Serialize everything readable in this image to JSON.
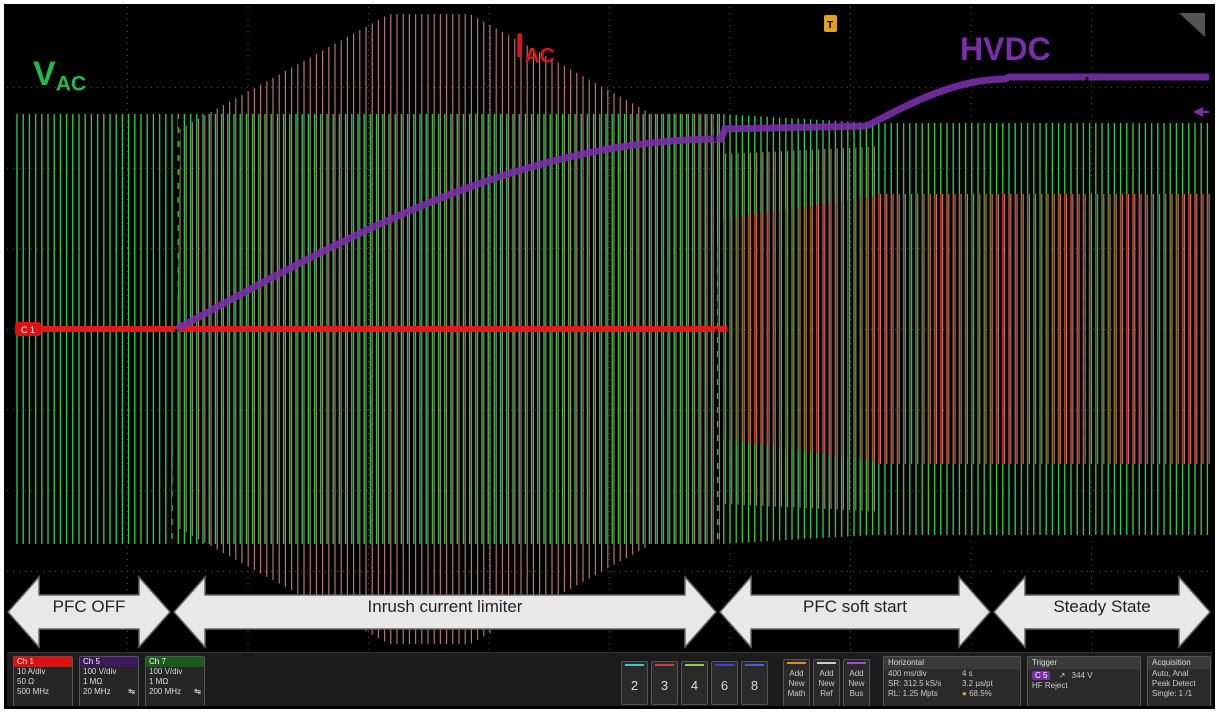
{
  "labels": {
    "vac": {
      "main": "V",
      "sub": "AC"
    },
    "iac": {
      "main": "I",
      "sub": "AC"
    },
    "hvdc": "HVDC"
  },
  "cursor_label": "C 1",
  "trigger_marker": "T",
  "phases": [
    {
      "label": "PFC OFF"
    },
    {
      "label": "Inrush  current limiter"
    },
    {
      "label": "PFC soft start"
    },
    {
      "label": "Steady State"
    }
  ],
  "channels": [
    {
      "name": "Ch 1",
      "color": "#e01010",
      "lines": [
        "10 A/div",
        "50 Ω",
        "500 MHz"
      ]
    },
    {
      "name": "Ch 5",
      "color": "#3a1a5a",
      "lines": [
        "100 V/div",
        "1 MΩ",
        "20 MHz"
      ]
    },
    {
      "name": "Ch 7",
      "color": "#1a5a1a",
      "lines": [
        "100 V/div",
        "1 MΩ",
        "200 MHz"
      ]
    }
  ],
  "number_buttons": [
    {
      "label": "2",
      "color": "#3fc8c8"
    },
    {
      "label": "3",
      "color": "#d04040"
    },
    {
      "label": "4",
      "color": "#9acc40"
    },
    {
      "label": "6",
      "color": "#4040d0"
    },
    {
      "label": "8",
      "color": "#4060e0"
    }
  ],
  "add_buttons": [
    {
      "lines": [
        "Add",
        "New",
        "Math"
      ],
      "color": "#e08a20"
    },
    {
      "lines": [
        "Add",
        "New",
        "Ref"
      ],
      "color": "#cccccc"
    },
    {
      "lines": [
        "Add",
        "New",
        "Bus"
      ],
      "color": "#9a50d0"
    }
  ],
  "horizontal": {
    "title": "Horizontal",
    "scale": "400 ms/div",
    "record_time": "4 s",
    "sample_rate": "SR: 312.5 kS/s",
    "sample_interval": "3.2 µs/pt",
    "record_length": "RL: 1.25 Mpts",
    "position": "68.5%"
  },
  "trigger": {
    "title": "Trigger",
    "source": "C 5",
    "level": "344 V",
    "mode": "HF Reject"
  },
  "acquisition": {
    "title": "Acquisition",
    "lines": [
      "Auto,   Anal",
      "Peak Detect",
      "Single: 1 /1"
    ]
  },
  "colors": {
    "vac": "#2fd04a",
    "iac": "#e41a1a",
    "iac_envelope": "#d08888",
    "hvdc": "#7a2ea8",
    "grid": "#ffffff"
  },
  "timing_shown": {
    "grid_divisions_x": 10,
    "grid_divisions_y": 8
  }
}
